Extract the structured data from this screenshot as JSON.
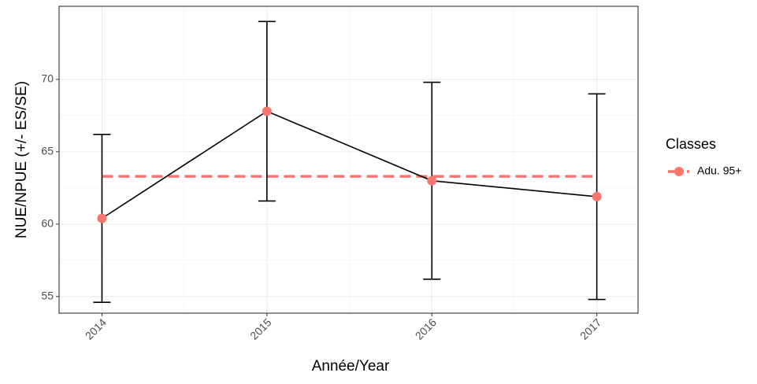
{
  "chart_data": {
    "type": "line",
    "x_label": "Année/Year",
    "y_label": "NUE/NPUE (+/- ES/SE)",
    "x": [
      2014,
      2015,
      2016,
      2017
    ],
    "series": [
      {
        "name": "Adu. 95+",
        "color": "#F8766D",
        "values": [
          60.4,
          67.8,
          63.0,
          61.9
        ],
        "errors": [
          5.8,
          6.2,
          6.8,
          7.1
        ]
      }
    ],
    "hline": 63.3,
    "xlim": [
      2013.74,
      2017.25
    ],
    "xticks": [
      2014,
      2015,
      2016,
      2017
    ],
    "ylim": [
      53.85,
      75.05
    ],
    "yticks": [
      55,
      60,
      65,
      70
    ],
    "grid": true,
    "legend_title": "Classes",
    "legend_position": "right"
  }
}
